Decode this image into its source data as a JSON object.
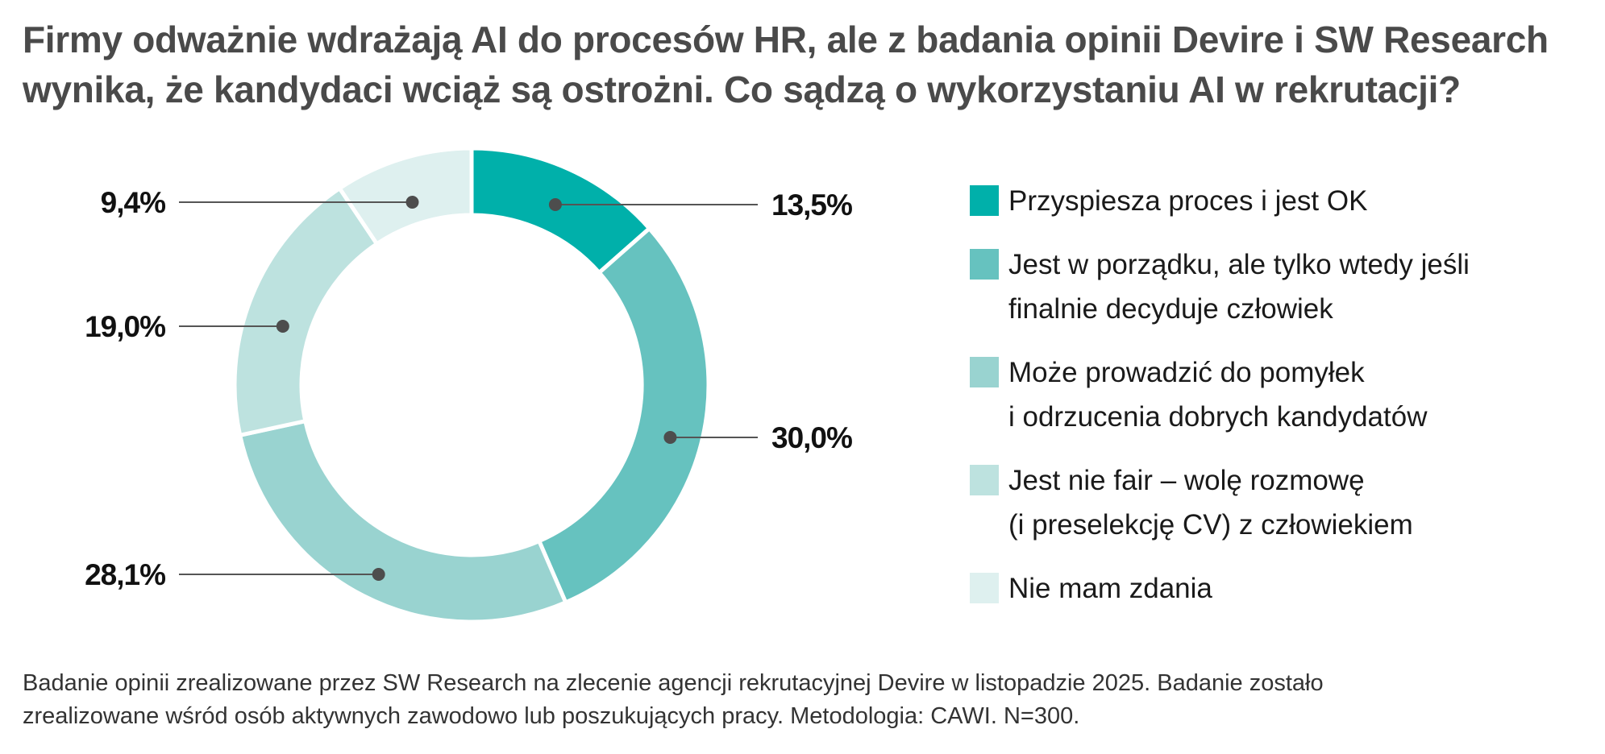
{
  "header": {
    "title_line1": "Firmy odważnie wdrażają AI do procesów HR, ale z badania opinii Devire i SW Research",
    "title_line2": "wynika, że kandydaci wciąż są ostrożni. Co sądzą o wykorzystaniu AI w rekrutacji?"
  },
  "chart_data": {
    "type": "pie",
    "variant": "donut",
    "title": "Co sądzą o wykorzystaniu AI w rekrutacji?",
    "categories": [
      "Przyspiesza proces i jest OK",
      "Jest w porządku, ale tylko wtedy jeśli finalnie decyduje człowiek",
      "Może prowadzić do pomyłek i odrzucenia dobrych kandydatów",
      "Jest nie fair – wolę rozmowę (i preselekcję CV) z człowiekiem",
      "Nie mam zdania"
    ],
    "values": [
      13.5,
      30.0,
      28.1,
      19.0,
      9.4
    ],
    "value_labels": [
      "13,5%",
      "30,0%",
      "28,1%",
      "19,0%",
      "9,4%"
    ],
    "colors": [
      "#00b0aa",
      "#66c2bf",
      "#99d3d0",
      "#bde2df",
      "#def0ef"
    ],
    "legend_position": "right"
  },
  "legend": {
    "items": [
      {
        "label": "Przyspiesza proces i jest OK",
        "color": "#00b0aa"
      },
      {
        "label": "Jest w porządku, ale tylko wtedy jeśli\nfinalnie decyduje człowiek",
        "color": "#66c2bf"
      },
      {
        "label": "Może prowadzić do pomyłek\ni odrzucenia dobrych kandydatów",
        "color": "#99d3d0"
      },
      {
        "label": "Jest nie fair – wolę rozmowę\n(i preselekcję CV) z człowiekiem",
        "color": "#bde2df"
      },
      {
        "label": "Nie mam zdania",
        "color": "#def0ef"
      }
    ]
  },
  "footer": {
    "source_line1": "Badanie opinii zrealizowane przez SW Research na zlecenie agencji rekrutacyjnej Devire w listopadzie 2025. Badanie zostało",
    "source_line2": "zrealizowane wśród osób aktywnych zawodowo lub poszukujących pracy. Metodologia: CAWI. N=300."
  }
}
